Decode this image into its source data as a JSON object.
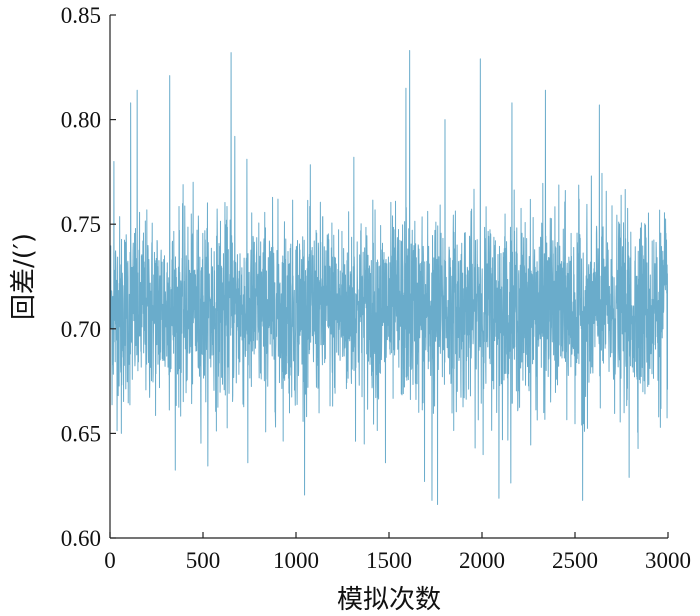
{
  "chart_data": {
    "type": "line",
    "title": "",
    "xlabel": "模拟次数",
    "ylabel": "回差/(′)",
    "xlim": [
      0,
      3000
    ],
    "ylim": [
      0.6,
      0.85
    ],
    "x_ticks": [
      0,
      500,
      1000,
      1500,
      2000,
      2500,
      3000
    ],
    "x_tick_labels": [
      "0",
      "500",
      "1000",
      "1500",
      "2000",
      "2500",
      "3000"
    ],
    "y_ticks": [
      0.6,
      0.65,
      0.7,
      0.75,
      0.8,
      0.85
    ],
    "y_tick_labels": [
      "0.60",
      "0.65",
      "0.70",
      "0.75",
      "0.80",
      "0.85"
    ],
    "grid": false,
    "legend": "none",
    "series": [
      {
        "color": "#6aaccb",
        "n_points": 3000,
        "mean": 0.709,
        "std": 0.022,
        "min": 0.616,
        "max": 0.833,
        "notable_points": [
          {
            "x": 20,
            "y": 0.78
          },
          {
            "x": 60,
            "y": 0.65
          },
          {
            "x": 110,
            "y": 0.808
          },
          {
            "x": 145,
            "y": 0.814
          },
          {
            "x": 320,
            "y": 0.821
          },
          {
            "x": 650,
            "y": 0.832
          },
          {
            "x": 670,
            "y": 0.792
          },
          {
            "x": 740,
            "y": 0.636
          },
          {
            "x": 1310,
            "y": 0.782
          },
          {
            "x": 1480,
            "y": 0.636
          },
          {
            "x": 1590,
            "y": 0.815
          },
          {
            "x": 1610,
            "y": 0.833
          },
          {
            "x": 1690,
            "y": 0.627
          },
          {
            "x": 1730,
            "y": 0.618
          },
          {
            "x": 1760,
            "y": 0.616
          },
          {
            "x": 1800,
            "y": 0.8
          },
          {
            "x": 1990,
            "y": 0.829
          },
          {
            "x": 2090,
            "y": 0.619
          },
          {
            "x": 2160,
            "y": 0.808
          },
          {
            "x": 2340,
            "y": 0.814
          },
          {
            "x": 2540,
            "y": 0.618
          },
          {
            "x": 2630,
            "y": 0.807
          },
          {
            "x": 2790,
            "y": 0.629
          }
        ]
      }
    ]
  }
}
